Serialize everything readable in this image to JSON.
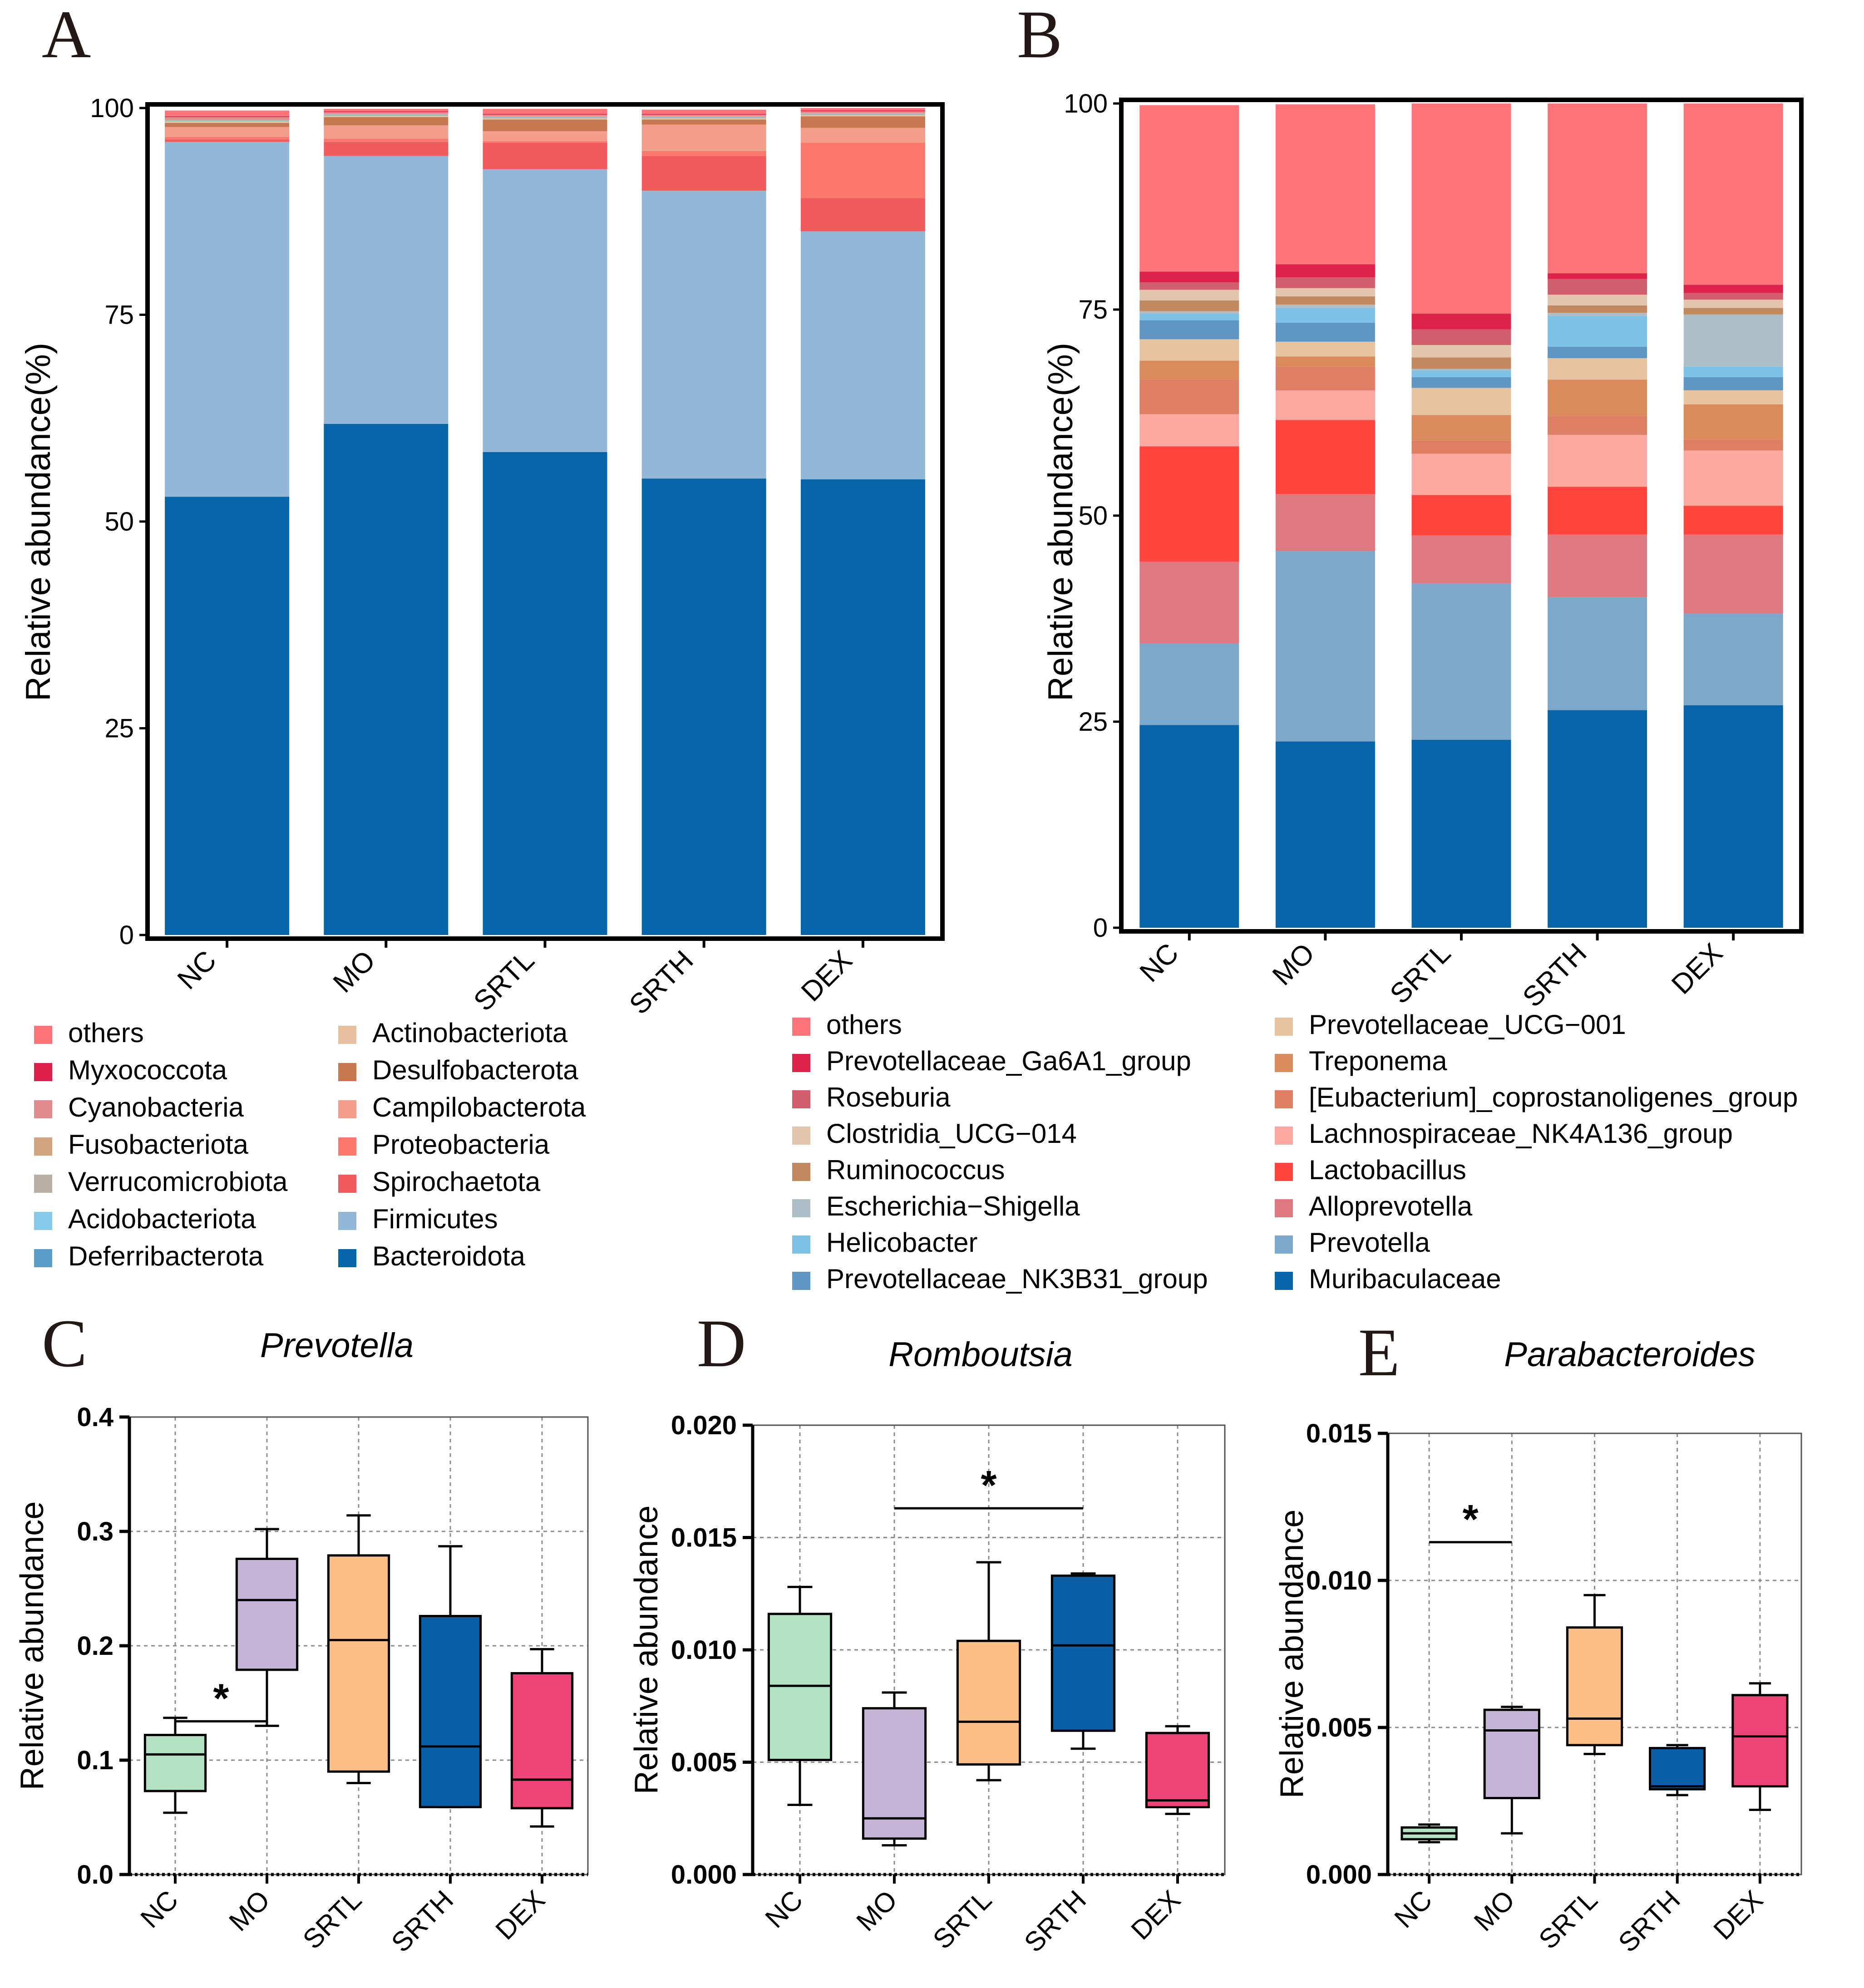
{
  "chart_data": [
    {
      "panel": "A",
      "type": "bar",
      "stacked": true,
      "title": "",
      "ylabel": "Relative abundance(%)",
      "xlabel": "",
      "ylim": [
        0,
        100
      ],
      "yticks": [
        "0",
        "25",
        "50",
        "75",
        "100"
      ],
      "categories": [
        "NC",
        "MO",
        "SRTL",
        "SRTH",
        "DEX"
      ],
      "series": [
        {
          "name": "Bacteroidota",
          "color": "#0565a8",
          "values": [
            53.0,
            61.8,
            58.4,
            55.2,
            55.1
          ]
        },
        {
          "name": "Firmicutes",
          "color": "#93b8d7",
          "values": [
            42.9,
            32.4,
            34.2,
            34.8,
            30.0
          ]
        },
        {
          "name": "Spirochaetota",
          "color": "#f05a5c",
          "values": [
            0.3,
            1.7,
            3.2,
            4.2,
            4.0
          ]
        },
        {
          "name": "Proteobacteria",
          "color": "#fe776c",
          "values": [
            0.3,
            0.4,
            0.2,
            0.6,
            6.7
          ]
        },
        {
          "name": "Campilobacterota",
          "color": "#f39d8a",
          "values": [
            1.2,
            1.6,
            1.2,
            3.2,
            1.8
          ]
        },
        {
          "name": "Desulfobacterota",
          "color": "#c87851",
          "values": [
            0.5,
            1.0,
            1.4,
            0.6,
            1.4
          ]
        },
        {
          "name": "Actinobacteriota",
          "color": "#e9c09f",
          "values": [
            0.2,
            0.2,
            0.2,
            0.2,
            0.2
          ]
        },
        {
          "name": "Deferribacterota",
          "color": "#5b9dc9",
          "values": [
            0.05,
            0.05,
            0.05,
            0.05,
            0.05
          ]
        },
        {
          "name": "Acidobacteriota",
          "color": "#86c9ea",
          "values": [
            0.05,
            0.05,
            0.05,
            0.05,
            0.05
          ]
        },
        {
          "name": "Verrucomicrobiota",
          "color": "#b9b0a4",
          "values": [
            0.05,
            0.05,
            0.05,
            0.05,
            0.05
          ]
        },
        {
          "name": "Fusobacteriota",
          "color": "#d3a27e",
          "values": [
            0.05,
            0.05,
            0.05,
            0.05,
            0.05
          ]
        },
        {
          "name": "Cyanobacteria",
          "color": "#e28a8d",
          "values": [
            0.3,
            0.2,
            0.2,
            0.2,
            0.2
          ]
        },
        {
          "name": "Myxococcota",
          "color": "#de1f4a",
          "values": [
            0.1,
            0.1,
            0.1,
            0.1,
            0.1
          ]
        },
        {
          "name": "others",
          "color": "#ff7479",
          "values": [
            0.7,
            0.3,
            0.6,
            0.5,
            0.3
          ]
        }
      ],
      "legend": {
        "col1": [
          "others",
          "Myxococcota",
          "Cyanobacteria",
          "Fusobacteriota",
          "Verrucomicrobiota",
          "Acidobacteriota",
          "Deferribacterota"
        ],
        "col2": [
          "Actinobacteriota",
          "Desulfobacterota",
          "Campilobacterota",
          "Proteobacteria",
          "Spirochaetota",
          "Firmicutes",
          "Bacteroidota"
        ]
      }
    },
    {
      "panel": "B",
      "type": "bar",
      "stacked": true,
      "title": "",
      "ylabel": "Relative abundance(%)",
      "xlabel": "",
      "ylim": [
        0,
        100
      ],
      "yticks": [
        "0",
        "25",
        "50",
        "75",
        "100"
      ],
      "categories": [
        "NC",
        "MO",
        "SRTL",
        "SRTH",
        "DEX"
      ],
      "series": [
        {
          "name": "Muribaculaceae",
          "color": "#0565a8",
          "values": [
            24.6,
            22.6,
            22.8,
            26.4,
            27.0
          ]
        },
        {
          "name": "Prevotella",
          "color": "#7ca8cc",
          "values": [
            9.9,
            23.1,
            19.0,
            13.7,
            11.1
          ]
        },
        {
          "name": "Alloprevotella",
          "color": "#df7981",
          "values": [
            9.9,
            6.9,
            5.8,
            7.6,
            9.6
          ]
        },
        {
          "name": "Lactobacillus",
          "color": "#fe443c",
          "values": [
            14.0,
            9.0,
            4.9,
            5.8,
            3.5
          ]
        },
        {
          "name": "Lachnospiraceae_NK4A136_group",
          "color": "#fda7a1",
          "values": [
            3.9,
            3.6,
            5.0,
            6.3,
            6.7
          ]
        },
        {
          "name": "[Eubacterium]_coprostanoligenes_group",
          "color": "#de7e62",
          "values": [
            4.2,
            2.9,
            1.6,
            2.3,
            1.3
          ]
        },
        {
          "name": "Treponema",
          "color": "#db8a5b",
          "values": [
            2.3,
            1.2,
            3.1,
            4.4,
            4.3
          ]
        },
        {
          "name": "Prevotellaceae_UCG-001",
          "color": "#e7c39f",
          "values": [
            2.6,
            1.8,
            3.3,
            2.6,
            1.7
          ]
        },
        {
          "name": "Prevotellaceae_NK3B31_group",
          "color": "#5e97c4",
          "values": [
            2.3,
            2.3,
            1.3,
            1.4,
            1.6
          ]
        },
        {
          "name": "Helicobacter",
          "color": "#7ec1e6",
          "values": [
            0.8,
            1.8,
            0.8,
            3.7,
            1.3
          ]
        },
        {
          "name": "Escherichia-Shigella",
          "color": "#aebec8",
          "values": [
            0.3,
            0.4,
            0.2,
            0.4,
            6.3
          ]
        },
        {
          "name": "Ruminococcus",
          "color": "#c28960",
          "values": [
            1.3,
            1.0,
            1.4,
            0.9,
            0.8
          ]
        },
        {
          "name": "Clostridia_UCG-014",
          "color": "#e3c5ad",
          "values": [
            1.3,
            1.0,
            1.5,
            1.3,
            1.0
          ]
        },
        {
          "name": "Roseburia",
          "color": "#d05e6c",
          "values": [
            0.9,
            1.3,
            1.9,
            1.9,
            0.8
          ]
        },
        {
          "name": "Prevotellaceae_Ga6A1_group",
          "color": "#dd2349",
          "values": [
            1.3,
            1.6,
            1.9,
            0.7,
            1.0
          ]
        },
        {
          "name": "others",
          "color": "#ff7478",
          "values": [
            20.2,
            19.4,
            25.5,
            20.6,
            22.0
          ]
        }
      ],
      "legend": {
        "col1": [
          "others",
          "Prevotellaceae_Ga6A1_group",
          "Roseburia",
          "Clostridia_UCG−014",
          "Ruminococcus",
          "Escherichia−Shigella",
          "Helicobacter",
          "Prevotellaceae_NK3B31_group"
        ],
        "col2": [
          "Prevotellaceae_UCG−001",
          "Treponema",
          "[Eubacterium]_coprostanoligenes_group",
          "Lachnospiraceae_NK4A136_group",
          "Lactobacillus",
          "Alloprevotella",
          "Prevotella",
          "Muribaculaceae"
        ]
      }
    },
    {
      "panel": "C",
      "type": "box",
      "title": "Prevotella",
      "ylabel": "Relative abundance",
      "xlabel": "",
      "ylim": [
        0,
        0.4
      ],
      "yticks": [
        "0.0",
        "0.1",
        "0.2",
        "0.3",
        "0.4"
      ],
      "categories": [
        "NC",
        "MO",
        "SRTL",
        "SRTH",
        "DEX"
      ],
      "colors": [
        "#b3e2c2",
        "#c6b4d8",
        "#fbbe84",
        "#0a5fa5",
        "#ed4376"
      ],
      "boxes": [
        {
          "min": 0.054,
          "q1": 0.073,
          "median": 0.105,
          "q3": 0.122,
          "max": 0.137
        },
        {
          "min": 0.13,
          "q1": 0.179,
          "median": 0.24,
          "q3": 0.276,
          "max": 0.302
        },
        {
          "min": 0.08,
          "q1": 0.09,
          "median": 0.205,
          "q3": 0.279,
          "max": 0.314
        },
        {
          "min": 0.059,
          "q1": 0.059,
          "median": 0.112,
          "q3": 0.226,
          "max": 0.287
        },
        {
          "min": 0.042,
          "q1": 0.058,
          "median": 0.083,
          "q3": 0.176,
          "max": 0.197
        }
      ],
      "significance": {
        "from": 0,
        "to": 1,
        "y": 0.134,
        "label": "*"
      }
    },
    {
      "panel": "D",
      "type": "box",
      "title": "Romboutsia",
      "ylabel": "Relative abundance",
      "xlabel": "",
      "ylim": [
        0,
        0.02
      ],
      "yticks": [
        "0.000",
        "0.005",
        "0.010",
        "0.015",
        "0.020"
      ],
      "categories": [
        "NC",
        "MO",
        "SRTL",
        "SRTH",
        "DEX"
      ],
      "colors": [
        "#b3e2c2",
        "#c6b4d8",
        "#fbbe84",
        "#0a5fa5",
        "#ed4376"
      ],
      "boxes": [
        {
          "min": 0.0031,
          "q1": 0.0051,
          "median": 0.0084,
          "q3": 0.0116,
          "max": 0.0128
        },
        {
          "min": 0.0013,
          "q1": 0.0016,
          "median": 0.0025,
          "q3": 0.0074,
          "max": 0.0081
        },
        {
          "min": 0.0042,
          "q1": 0.0049,
          "median": 0.0068,
          "q3": 0.0104,
          "max": 0.0139
        },
        {
          "min": 0.0056,
          "q1": 0.0064,
          "median": 0.0102,
          "q3": 0.0133,
          "max": 0.0134
        },
        {
          "min": 0.0027,
          "q1": 0.003,
          "median": 0.0033,
          "q3": 0.0063,
          "max": 0.0066
        }
      ],
      "significance": {
        "from": 1,
        "to": 3,
        "y": 0.0163,
        "label": "*"
      }
    },
    {
      "panel": "E",
      "type": "box",
      "title": "Parabacteroides",
      "ylabel": "Relative abundance",
      "xlabel": "",
      "ylim": [
        0,
        0.015
      ],
      "yticks": [
        "0.000",
        "0.005",
        "0.010",
        "0.015"
      ],
      "categories": [
        "NC",
        "MO",
        "SRTL",
        "SRTH",
        "DEX"
      ],
      "colors": [
        "#b3e2c2",
        "#c6b4d8",
        "#fbbe84",
        "#0a5fa5",
        "#ed4376"
      ],
      "boxes": [
        {
          "min": 0.0011,
          "q1": 0.0012,
          "median": 0.0014,
          "q3": 0.0016,
          "max": 0.0017
        },
        {
          "min": 0.0014,
          "q1": 0.0026,
          "median": 0.0049,
          "q3": 0.0056,
          "max": 0.0057
        },
        {
          "min": 0.0041,
          "q1": 0.0044,
          "median": 0.0053,
          "q3": 0.0084,
          "max": 0.0095
        },
        {
          "min": 0.0027,
          "q1": 0.0029,
          "median": 0.003,
          "q3": 0.0043,
          "max": 0.0044
        },
        {
          "min": 0.0022,
          "q1": 0.003,
          "median": 0.0047,
          "q3": 0.0061,
          "max": 0.0065
        }
      ],
      "significance": {
        "from": 0,
        "to": 1,
        "y": 0.0113,
        "label": "*"
      }
    }
  ]
}
